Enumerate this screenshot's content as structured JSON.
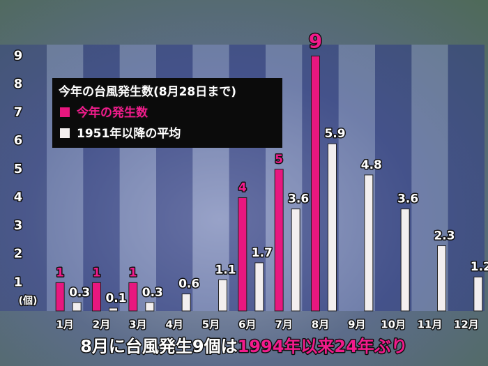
{
  "chart_data": {
    "type": "bar",
    "title": "今年の台風発生数(8月28日まで)",
    "y_unit": "(個)",
    "categories": [
      "1月",
      "2月",
      "3月",
      "4月",
      "5月",
      "6月",
      "7月",
      "8月",
      "9月",
      "10月",
      "11月",
      "12月"
    ],
    "series": [
      {
        "name": "今年の発生数",
        "color": "#e8177f",
        "values": [
          1,
          1,
          1,
          0,
          0,
          4,
          5,
          9,
          null,
          null,
          null,
          null
        ]
      },
      {
        "name": "1951年以降の平均",
        "color": "#f3efef",
        "values": [
          0.3,
          0.1,
          0.3,
          0.6,
          1.1,
          1.7,
          3.6,
          5.9,
          4.8,
          3.6,
          2.3,
          1.2
        ]
      }
    ],
    "ylim": [
      0,
      9.4
    ],
    "yticks": [
      1,
      2,
      3,
      4,
      5,
      6,
      7,
      8,
      9
    ],
    "annotation": {
      "text": "8月に台風発生9個は",
      "highlight": "1994年以来24年ぶり"
    }
  }
}
